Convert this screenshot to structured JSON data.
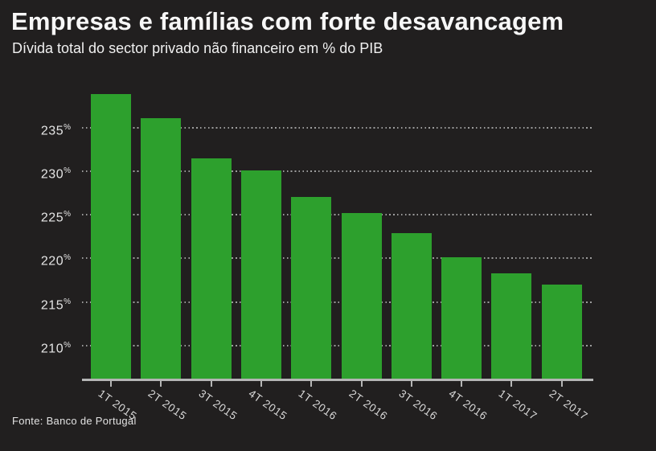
{
  "header": {
    "title": "Empresas e famílias com forte desavancagem",
    "subtitle": "Dívida total do sector privado não financeiro em % do PIB"
  },
  "footer": {
    "source": "Fonte: Banco de Portugal"
  },
  "colors": {
    "background": "#211f1f",
    "bar": "#2da02d",
    "grid": "#9d9d9d",
    "axis": "#b5b5b5",
    "title_text": "#f7f7f7",
    "tick_text": "#d9d9d9"
  },
  "chart_data": {
    "type": "bar",
    "title": "Empresas e famílias com forte desavancagem",
    "subtitle": "Dívida total do sector privado não financeiro em % do PIB",
    "source": "Fonte: Banco de Portugal",
    "categories": [
      "1T 2015",
      "2T 2015",
      "3T 2015",
      "4T 2015",
      "1T 2016",
      "2T 2016",
      "3T 2016",
      "4T 2016",
      "1T 2017",
      "2T 2017"
    ],
    "values": [
      238.9,
      236.1,
      231.5,
      230.1,
      227.1,
      225.2,
      222.9,
      220.1,
      218.3,
      217.0
    ],
    "xlabel": "",
    "ylabel": "% do PIB",
    "ylim": [
      206,
      240
    ],
    "yticks": [
      210,
      215,
      220,
      225,
      230,
      235
    ],
    "ytick_suffix": "%",
    "grid": "horizontal-dotted",
    "legend": "none",
    "bar_color": "#2da02d"
  }
}
